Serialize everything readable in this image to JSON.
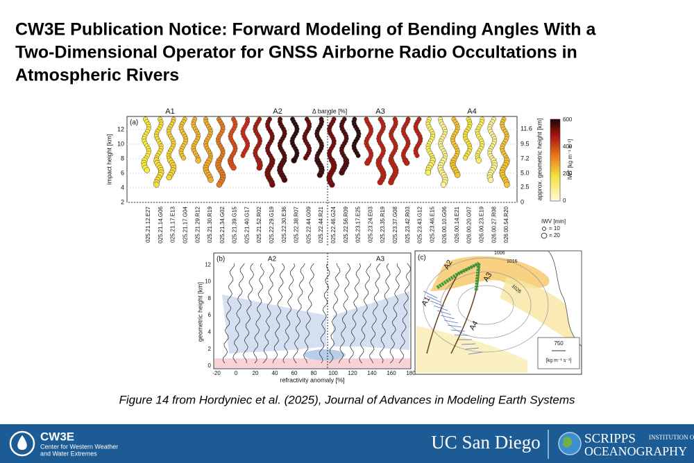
{
  "header": {
    "title_lines": [
      "CW3E Publication Notice: Forward Modeling of Bending Angles With a",
      "Two-Dimensional Operator for GNSS Airborne Radio Occultations in",
      "Atmospheric Rivers"
    ]
  },
  "figure": {
    "panel_a": {
      "tag": "(a)",
      "groups": [
        "A1",
        "A2",
        "A3",
        "A4"
      ],
      "top_label": "Δ bangle [%]",
      "y_label": "impact height [km]",
      "y_ticks": [
        "2",
        "4",
        "6",
        "8",
        "10",
        "12"
      ],
      "y2_label": "approx. geometric height [km]",
      "y2_ticks": [
        "0",
        "2.5",
        "5.0",
        "7.2",
        "9.5",
        "11.6"
      ],
      "profiles": [
        "025.21.12.E27",
        "025.21.14.G06",
        "025.21.17.E13",
        "025.21.17.G04",
        "025.21.29.R12",
        "025.21.30.R19",
        "025.21.34.G02",
        "025.21.39.G15",
        "025.21.40.G17",
        "025.21.52.R02",
        "025.22.29.G19",
        "025.22.30.E36",
        "025.22.38.R07",
        "025.22.44.G09",
        "025.22.44.R21",
        "025.22.46.G24",
        "025.22.56.R09",
        "025.23.17.E25",
        "025.23.24.E03",
        "025.23.35.R19",
        "025.23.37.G08",
        "025.23.42.R03",
        "025.23.43.G12",
        "025.23.46.E15",
        "026.00.10.G06",
        "026.00.14.E21",
        "026.00.20.G07",
        "026.00.23.E19",
        "026.00.27.R08",
        "026.00.54.R20"
      ],
      "colorbar_label": "IWT [kg m⁻¹ s⁻¹]",
      "colorbar_ticks": [
        "0",
        "200",
        "400",
        "600"
      ],
      "iwv_title": "IWV [mm]",
      "iwv_items": [
        "= 10",
        "= 20"
      ]
    },
    "panel_b": {
      "tag": "(b)",
      "groups": [
        "A2",
        "A3"
      ],
      "y_label": "geometric height [km]",
      "y_ticks": [
        "0",
        "2",
        "4",
        "6",
        "8",
        "10",
        "12"
      ],
      "x_label": "refractivity anomaly [%]",
      "x_ticks": [
        "-20",
        "0",
        "20",
        "40",
        "60",
        "80",
        "100",
        "120",
        "140",
        "160",
        "180"
      ]
    },
    "panel_c": {
      "tag": "(c)",
      "groups": [
        "A1",
        "A2",
        "A3",
        "A4"
      ],
      "isobars": [
        "1016",
        "1026",
        "1006"
      ],
      "scale_value": "750",
      "scale_unit": "[kg m⁻¹ s⁻¹]"
    },
    "caption": "Figure 14 from Hordyniec et al. (2025), Journal of Advances in Modeling Earth Systems"
  },
  "footer": {
    "org": "CW3E",
    "org_lines": [
      "Center for Western Weather",
      "and Water Extremes"
    ],
    "university": "UC San Diego",
    "scripps": "SCRIPPS",
    "institution": "INSTITUTION OF",
    "oceanography": "OCEANOGRAPHY"
  }
}
